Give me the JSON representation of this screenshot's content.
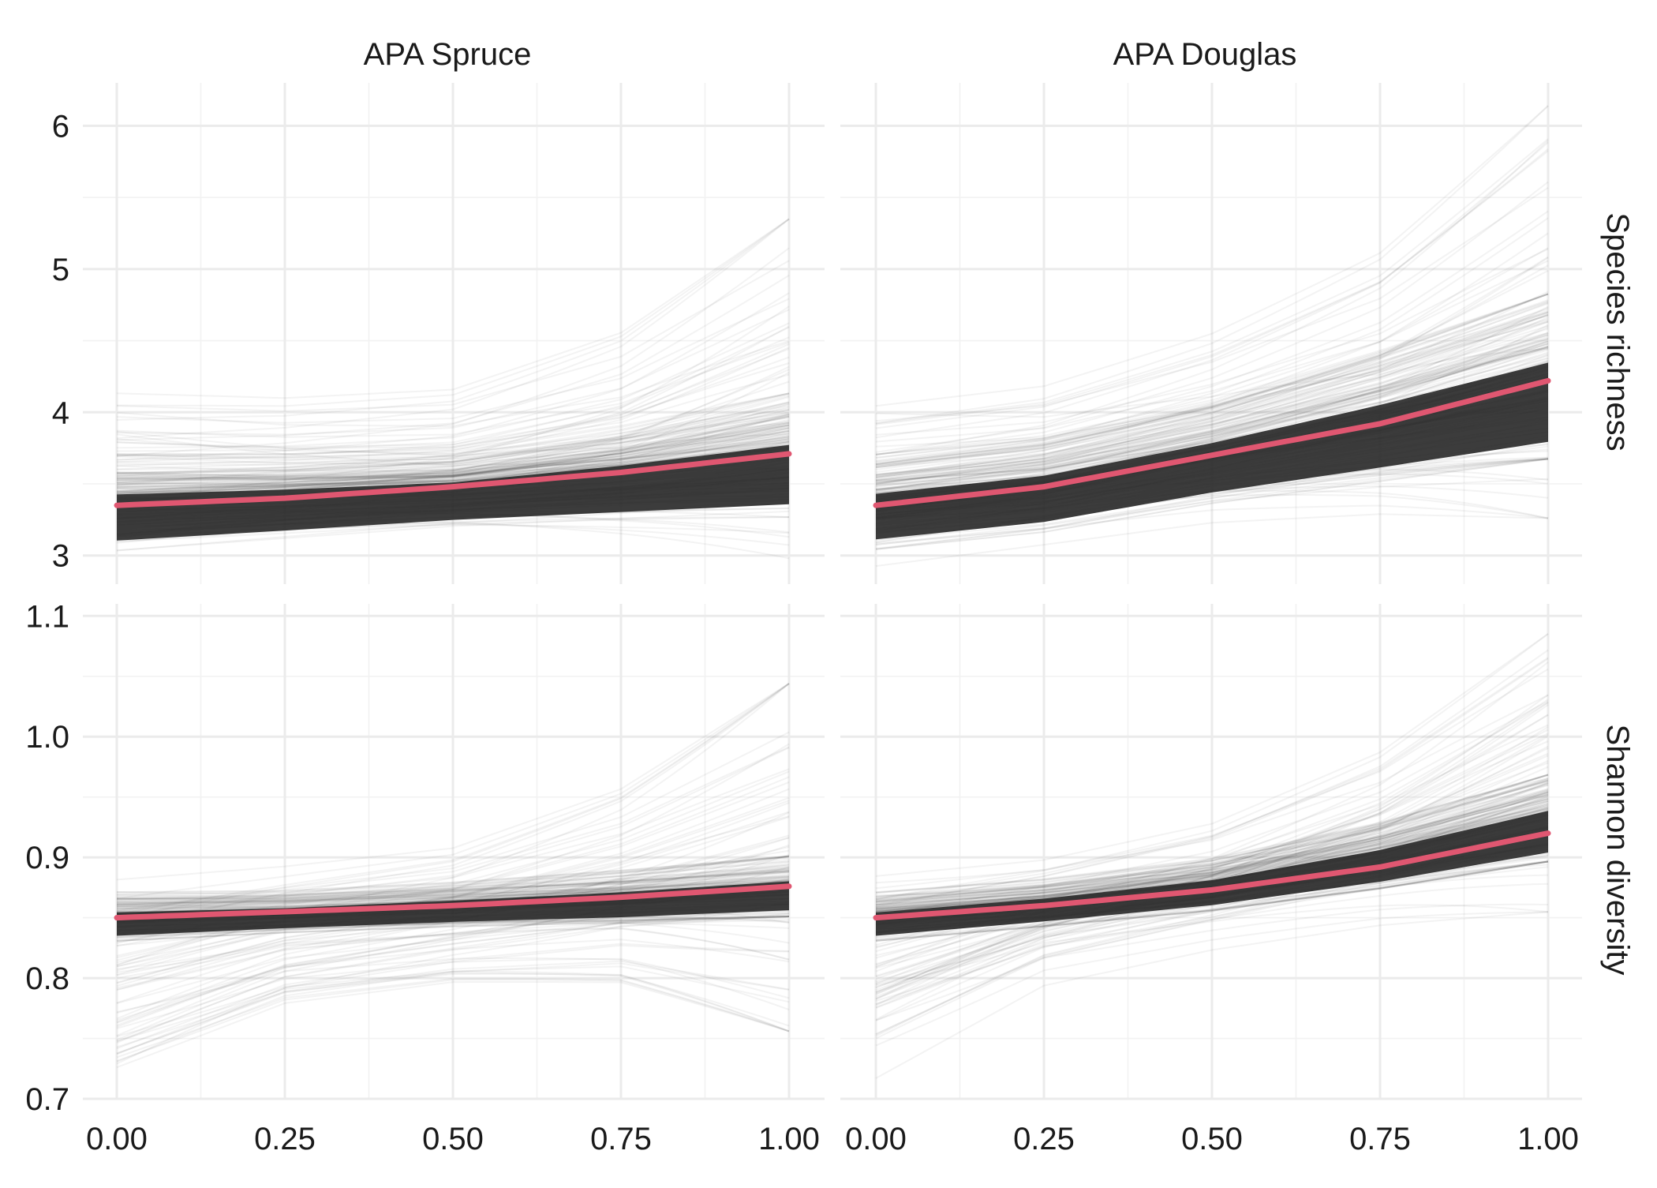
{
  "chart_data": {
    "type": "line",
    "title": "",
    "xlabel": "",
    "ylabel": "",
    "columns": [
      "APA Spruce",
      "APA Douglas"
    ],
    "rows": [
      "Species richness",
      "Shannon diversity"
    ],
    "x_ticks": [
      "0.00",
      "0.25",
      "0.50",
      "0.75",
      "1.00"
    ],
    "xlim": [
      0,
      1
    ],
    "grid": true,
    "legend": "none",
    "colors": {
      "fit": "#e05771",
      "draws": "#2b2b2b",
      "grid": "#ebebeb"
    },
    "panels": [
      {
        "column": "APA Spruce",
        "row": "Species richness",
        "ylim": [
          2.8,
          6.3
        ],
        "y_ticks": [
          "3",
          "4",
          "5",
          "6"
        ],
        "fit": {
          "x": [
            0,
            0.25,
            0.5,
            0.75,
            1.0
          ],
          "y": [
            3.35,
            3.4,
            3.48,
            3.58,
            3.71
          ]
        },
        "band_low": [
          3.02,
          3.1,
          3.18,
          3.22,
          3.25
        ],
        "band_high": [
          3.72,
          3.72,
          3.75,
          3.92,
          4.15
        ],
        "spread_low": [
          2.9,
          3.0,
          3.05,
          3.0,
          2.9
        ],
        "spread_high": [
          4.2,
          4.15,
          4.2,
          4.6,
          5.4
        ]
      },
      {
        "column": "APA Douglas",
        "row": "Species richness",
        "ylim": [
          2.8,
          6.3
        ],
        "y_ticks": [
          "3",
          "4",
          "5",
          "6"
        ],
        "fit": {
          "x": [
            0,
            0.25,
            0.5,
            0.75,
            1.0
          ],
          "y": [
            3.35,
            3.48,
            3.7,
            3.92,
            4.22
          ]
        },
        "band_low": [
          3.03,
          3.15,
          3.35,
          3.5,
          3.65
        ],
        "band_high": [
          3.72,
          3.85,
          4.1,
          4.45,
          4.85
        ],
        "spread_low": [
          2.9,
          3.05,
          3.2,
          3.25,
          3.2
        ],
        "spread_high": [
          4.2,
          4.3,
          4.65,
          5.2,
          6.2
        ]
      },
      {
        "column": "APA Spruce",
        "row": "Shannon diversity",
        "ylim": [
          0.7,
          1.11
        ],
        "y_ticks": [
          "0.7",
          "0.8",
          "0.9",
          "1.0",
          "1.1"
        ],
        "fit": {
          "x": [
            0,
            0.25,
            0.5,
            0.75,
            1.0
          ],
          "y": [
            0.85,
            0.855,
            0.86,
            0.867,
            0.876
          ]
        },
        "band_low": [
          0.83,
          0.837,
          0.842,
          0.845,
          0.85
        ],
        "band_high": [
          0.872,
          0.873,
          0.88,
          0.89,
          0.902
        ],
        "spread_low": [
          0.71,
          0.77,
          0.79,
          0.79,
          0.75
        ],
        "spread_high": [
          0.885,
          0.895,
          0.91,
          0.96,
          1.05
        ]
      },
      {
        "column": "APA Douglas",
        "row": "Shannon diversity",
        "ylim": [
          0.7,
          1.11
        ],
        "y_ticks": [
          "0.7",
          "0.8",
          "0.9",
          "1.0",
          "1.1"
        ],
        "fit": {
          "x": [
            0,
            0.25,
            0.5,
            0.75,
            1.0
          ],
          "y": [
            0.85,
            0.86,
            0.873,
            0.892,
            0.92
          ]
        },
        "band_low": [
          0.83,
          0.842,
          0.855,
          0.873,
          0.895
        ],
        "band_high": [
          0.872,
          0.883,
          0.9,
          0.93,
          0.97
        ],
        "spread_low": [
          0.71,
          0.79,
          0.82,
          0.84,
          0.85
        ],
        "spread_high": [
          0.888,
          0.9,
          0.93,
          0.99,
          1.09
        ]
      }
    ]
  }
}
